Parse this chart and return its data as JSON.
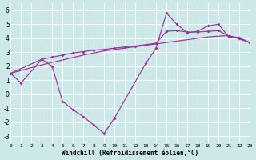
{
  "xlabel": "Windchill (Refroidissement éolien,°C)",
  "bg_color": "#cce8e8",
  "line_color": "#993399",
  "grid_color": "#ffffff",
  "xlim": [
    0,
    23
  ],
  "ylim": [
    -3.5,
    6.5
  ],
  "xticks": [
    0,
    1,
    2,
    3,
    4,
    5,
    6,
    7,
    8,
    9,
    10,
    11,
    12,
    13,
    14,
    15,
    16,
    17,
    18,
    19,
    20,
    21,
    22,
    23
  ],
  "yticks": [
    -3,
    -2,
    -1,
    0,
    1,
    2,
    3,
    4,
    5,
    6
  ],
  "line1_x": [
    0,
    1,
    3,
    4,
    5,
    6,
    7,
    8,
    9,
    10,
    13,
    14,
    15,
    16,
    17,
    18,
    19,
    20,
    21,
    22,
    23
  ],
  "line1_y": [
    1.5,
    0.8,
    2.5,
    2.0,
    -0.5,
    -1.1,
    -1.6,
    -2.2,
    -2.8,
    -1.7,
    2.2,
    3.3,
    5.8,
    5.0,
    4.4,
    4.5,
    4.9,
    5.0,
    4.1,
    4.0,
    3.7
  ],
  "line2_x": [
    0,
    3,
    4,
    5,
    6,
    7,
    8,
    9,
    10,
    11,
    12,
    13,
    14,
    15,
    16,
    17,
    18,
    19,
    20,
    21,
    22,
    23
  ],
  "line2_y": [
    1.5,
    2.5,
    2.65,
    2.8,
    2.95,
    3.05,
    3.15,
    3.2,
    3.3,
    3.38,
    3.45,
    3.55,
    3.65,
    4.5,
    4.55,
    4.45,
    4.45,
    4.5,
    4.55,
    4.15,
    4.05,
    3.7
  ],
  "line3_x": [
    0,
    3,
    5,
    7,
    9,
    11,
    13,
    15,
    17,
    19,
    21,
    23
  ],
  "line3_y": [
    1.5,
    2.1,
    2.45,
    2.8,
    3.1,
    3.3,
    3.5,
    3.7,
    3.9,
    4.1,
    4.2,
    3.7
  ]
}
